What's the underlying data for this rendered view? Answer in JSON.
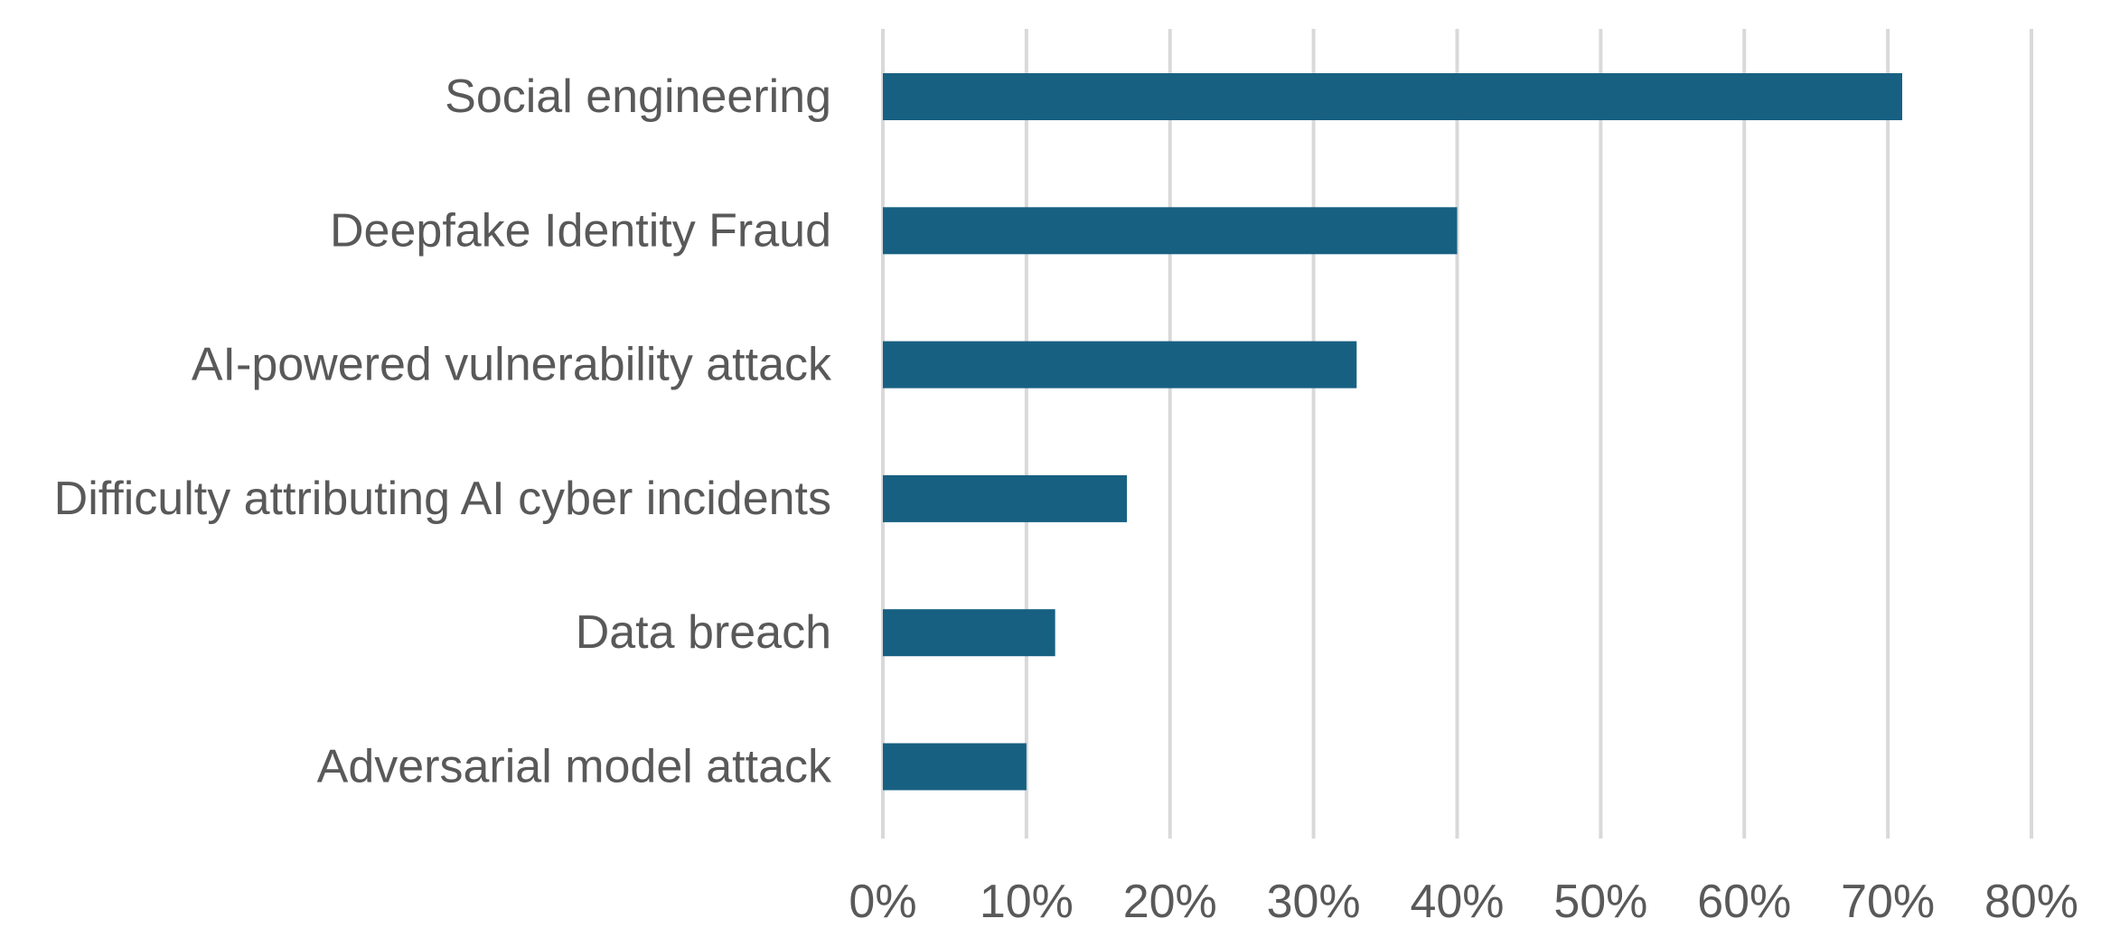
{
  "chart_data": {
    "type": "bar",
    "orientation": "horizontal",
    "categories": [
      "Social engineering",
      "Deepfake Identity Fraud",
      "AI-powered vulnerability attack",
      "Difficulty attributing AI cyber incidents",
      "Data breach",
      "Adversarial model attack"
    ],
    "values": [
      71,
      40,
      33,
      17,
      12,
      10
    ],
    "value_unit": "%",
    "xlim": [
      0,
      80
    ],
    "x_ticks": [
      0,
      10,
      20,
      30,
      40,
      50,
      60,
      70,
      80
    ],
    "x_tick_labels": [
      "0%",
      "10%",
      "20%",
      "30%",
      "40%",
      "50%",
      "60%",
      "70%",
      "80%"
    ],
    "bar_color": "#176082",
    "grid": true,
    "legend": "none"
  }
}
